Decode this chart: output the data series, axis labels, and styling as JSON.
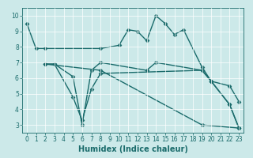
{
  "title": "",
  "xlabel": "Humidex (Indice chaleur)",
  "ylabel": "",
  "bg_color": "#cce9e9",
  "line_color": "#1a6b6b",
  "grid_color": "#ffffff",
  "xlim": [
    -0.5,
    23.5
  ],
  "ylim": [
    2.5,
    10.5
  ],
  "xticks": [
    0,
    1,
    2,
    3,
    4,
    5,
    6,
    7,
    8,
    9,
    10,
    11,
    12,
    13,
    14,
    15,
    16,
    17,
    18,
    19,
    20,
    21,
    22,
    23
  ],
  "yticks": [
    3,
    4,
    5,
    6,
    7,
    8,
    9,
    10
  ],
  "lines": [
    {
      "x": [
        0,
        1,
        2,
        8,
        10,
        11,
        12,
        13,
        14,
        15,
        16,
        17,
        19,
        20,
        22,
        23
      ],
      "y": [
        9.5,
        7.9,
        7.9,
        7.9,
        8.1,
        9.1,
        9.0,
        8.4,
        10.0,
        9.5,
        8.8,
        9.1,
        6.7,
        5.8,
        5.5,
        4.5
      ]
    },
    {
      "x": [
        2,
        3,
        5,
        6,
        7,
        8,
        13,
        14,
        19,
        20,
        22,
        23
      ],
      "y": [
        6.9,
        6.9,
        6.1,
        3.0,
        6.5,
        7.0,
        6.5,
        7.0,
        6.5,
        5.8,
        4.3,
        2.8
      ]
    },
    {
      "x": [
        2,
        3,
        5,
        6,
        7,
        8,
        19,
        20,
        22,
        23
      ],
      "y": [
        6.9,
        6.9,
        4.8,
        3.3,
        5.3,
        6.3,
        6.5,
        5.8,
        4.3,
        2.8
      ]
    },
    {
      "x": [
        2,
        8,
        19,
        23
      ],
      "y": [
        6.9,
        6.5,
        3.0,
        2.8
      ]
    }
  ],
  "marker": "D",
  "markersize": 2.5,
  "linewidth": 1.0,
  "xlabel_fontsize": 7,
  "tick_fontsize": 5.5
}
